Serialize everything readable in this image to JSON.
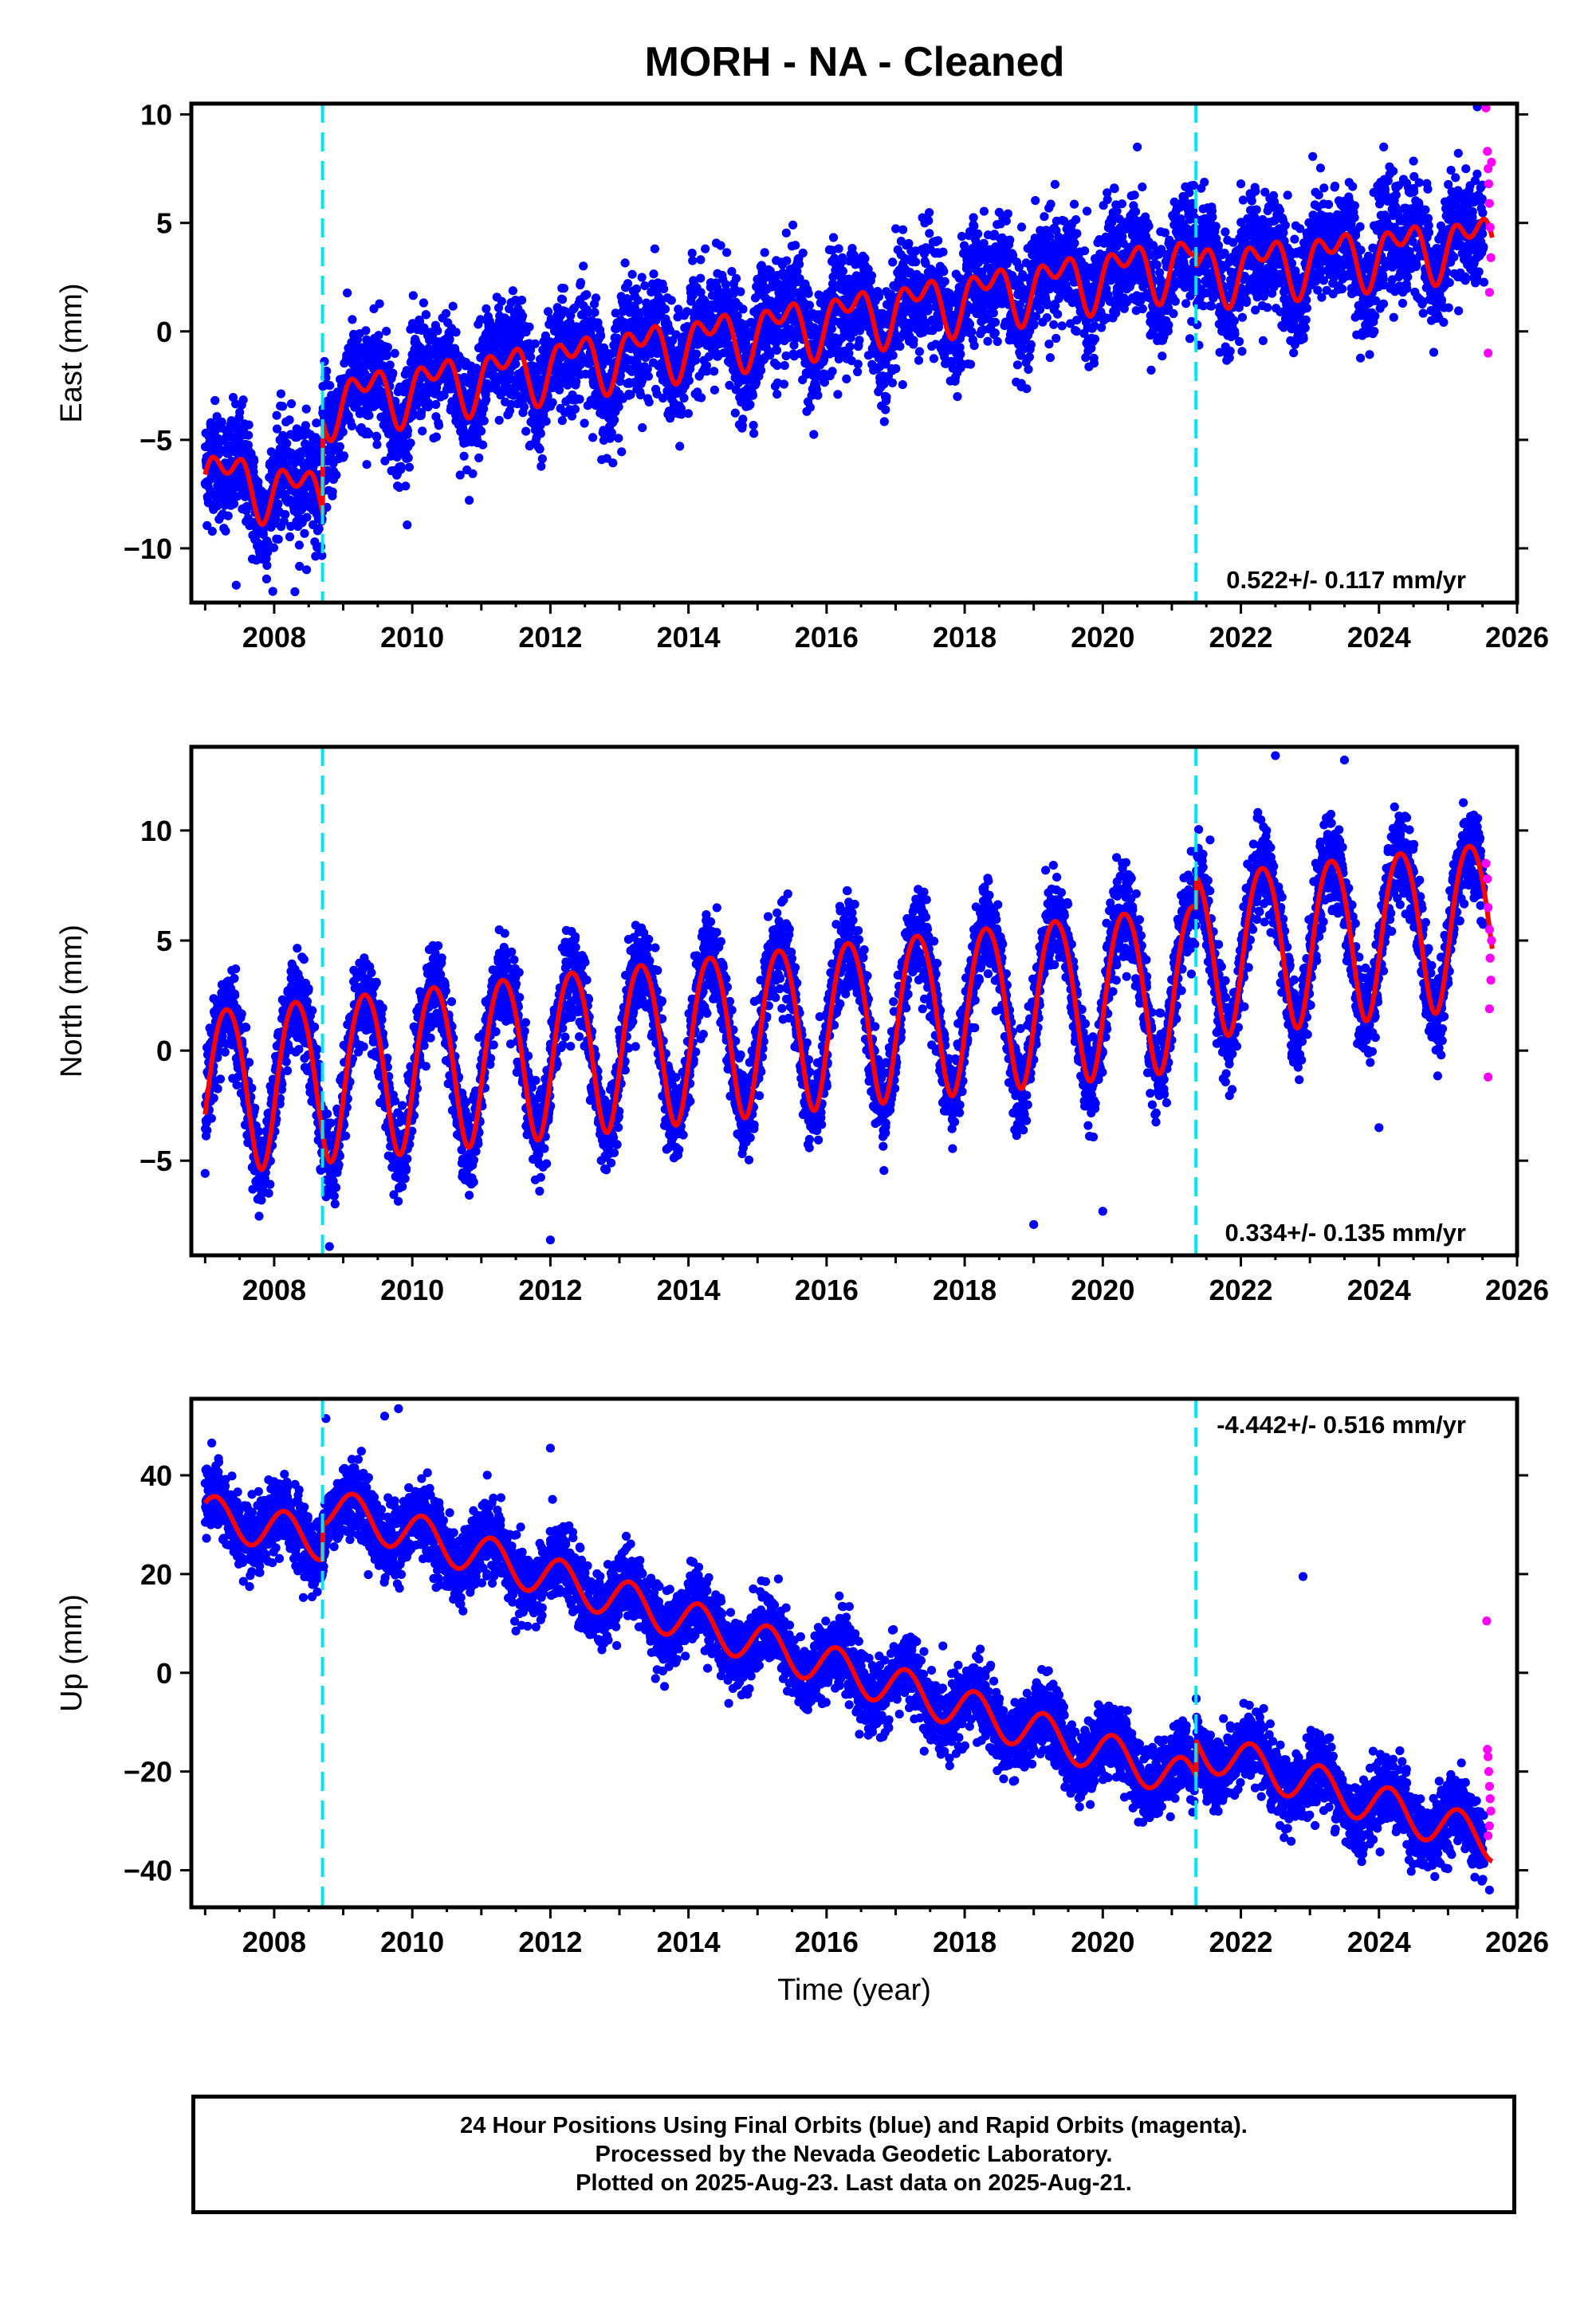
{
  "title": "MORH  - NA - Cleaned",
  "colors": {
    "final_orbits": "#0000ff",
    "rapid_orbits": "#ff00ff",
    "model_fit": "#ff0000",
    "offsets": "#00e5ee",
    "frame": "#000000"
  },
  "caption": {
    "line1": "24 Hour Positions Using Final Orbits (blue) and Rapid Orbits (magenta).",
    "line2": "Processed by the Nevada Geodetic Laboratory.",
    "line3": "Plotted on 2025-Aug-23. Last data on 2025-Aug-21."
  },
  "chart_data": [
    {
      "type": "scatter",
      "component": "east",
      "ylabel": "East (mm)",
      "xlabel": "",
      "xlim": [
        2006.8,
        2026.0
      ],
      "ylim": [
        -12.5,
        10.5
      ],
      "yticks": [
        -10,
        -5,
        0,
        5,
        10
      ],
      "ytick_labels": [
        "−10",
        "−5",
        "0",
        "5",
        "10"
      ],
      "xticks": [
        2008,
        2010,
        2012,
        2014,
        2016,
        2018,
        2020,
        2022,
        2024,
        2026
      ],
      "rate_label": "0.522+/- 0.117 mm/yr",
      "rate_label_position": "bottom-right",
      "offsets": [
        2008.7,
        2021.35
      ],
      "data_start": 2007.0,
      "data_end": 2025.64,
      "rapid_start": 2025.52,
      "fit": {
        "segments": [
          {
            "start": 2007.0,
            "end": 2008.7,
            "value_at_start": -6.6,
            "slope": -0.6
          },
          {
            "start": 2008.7,
            "end": 2021.35,
            "value_at_start": -3.3,
            "slope": 0.522
          },
          {
            "start": 2021.35,
            "end": 2025.64,
            "value_at_start": 2.7,
            "slope": 0.35
          }
        ],
        "annual_sin": 0.9,
        "annual_cos": -0.5,
        "semiannual_sin": 0.6,
        "semiannual_cos": 0.5
      },
      "scatter_sigma": 1.3,
      "outliers": [
        [
          2007.45,
          -11.7
        ],
        [
          2008.3,
          -12.0
        ],
        [
          2020.5,
          8.5
        ],
        [
          2021.3,
          5.9
        ],
        [
          2022.0,
          6.8
        ]
      ],
      "rapid_points": [
        [
          2025.55,
          10.3
        ],
        [
          2025.57,
          8.3
        ],
        [
          2025.58,
          7.5
        ],
        [
          2025.59,
          6.8
        ],
        [
          2025.6,
          5.9
        ],
        [
          2025.61,
          4.8
        ],
        [
          2025.62,
          3.4
        ],
        [
          2025.6,
          1.8
        ],
        [
          2025.58,
          -1.0
        ],
        [
          2025.63,
          7.8
        ]
      ]
    },
    {
      "type": "scatter",
      "component": "north",
      "ylabel": "North (mm)",
      "xlabel": "",
      "xlim": [
        2006.8,
        2026.0
      ],
      "ylim": [
        -9.3,
        13.8
      ],
      "yticks": [
        -5,
        0,
        5,
        10
      ],
      "ytick_labels": [
        "−5",
        "0",
        "5",
        "10"
      ],
      "xticks": [
        2008,
        2010,
        2012,
        2014,
        2016,
        2018,
        2020,
        2022,
        2024,
        2026
      ],
      "rate_label": "0.334+/- 0.135 mm/yr",
      "rate_label_position": "bottom-right",
      "offsets": [
        2008.7,
        2021.35
      ],
      "data_start": 2007.0,
      "data_end": 2025.64,
      "rapid_start": 2025.52,
      "fit": {
        "segments": [
          {
            "start": 2007.0,
            "end": 2021.35,
            "value_at_start": -1.6,
            "slope": 0.334
          },
          {
            "start": 2021.35,
            "end": 2025.64,
            "value_at_start": 4.6,
            "slope": 0.334
          }
        ],
        "annual_sin": 3.4,
        "annual_cos": -1.5,
        "semiannual_sin": 0.3,
        "semiannual_cos": 0.2
      },
      "scatter_sigma": 1.0,
      "outliers": [
        [
          2008.8,
          -8.9
        ],
        [
          2012.0,
          -8.6
        ],
        [
          2019.0,
          -7.9
        ],
        [
          2020.0,
          -7.3
        ],
        [
          2022.5,
          13.4
        ],
        [
          2023.5,
          13.2
        ],
        [
          2024.0,
          -3.5
        ],
        [
          2024.9,
          -0.2
        ]
      ],
      "rapid_points": [
        [
          2025.55,
          8.5
        ],
        [
          2025.57,
          7.8
        ],
        [
          2025.58,
          6.5
        ],
        [
          2025.6,
          5.5
        ],
        [
          2025.61,
          4.2
        ],
        [
          2025.62,
          3.2
        ],
        [
          2025.6,
          1.9
        ],
        [
          2025.58,
          -1.2
        ],
        [
          2025.63,
          5.0
        ]
      ]
    },
    {
      "type": "scatter",
      "component": "up",
      "ylabel": "Up (mm)",
      "xlabel": "Time (year)",
      "xlim": [
        2006.8,
        2026.0
      ],
      "ylim": [
        -47.5,
        55.5
      ],
      "yticks": [
        -40,
        -20,
        0,
        20,
        40
      ],
      "ytick_labels": [
        "−40",
        "−20",
        "0",
        "20",
        "40"
      ],
      "xticks": [
        2008,
        2010,
        2012,
        2014,
        2016,
        2018,
        2020,
        2022,
        2024,
        2026
      ],
      "rate_label": "-4.442+/- 0.516 mm/yr",
      "rate_label_position": "top-right",
      "offsets": [
        2008.7,
        2021.35
      ],
      "data_start": 2007.0,
      "data_end": 2025.64,
      "rapid_start": 2025.52,
      "fit": {
        "segments": [
          {
            "start": 2007.0,
            "end": 2008.7,
            "value_at_start": 32.0,
            "slope": -3.0
          },
          {
            "start": 2008.7,
            "end": 2021.35,
            "value_at_start": 34.0,
            "slope": -4.442
          },
          {
            "start": 2021.35,
            "end": 2025.64,
            "value_at_start": -15.0,
            "slope": -4.442
          }
        ],
        "annual_sin": 3.4,
        "annual_cos": 2.4,
        "semiannual_sin": 0.0,
        "semiannual_cos": 0.0
      },
      "scatter_sigma": 3.6,
      "outliers": [
        [
          2008.75,
          51.5
        ],
        [
          2009.6,
          52.0
        ],
        [
          2009.8,
          53.5
        ],
        [
          2012.0,
          45.5
        ],
        [
          2022.9,
          19.5
        ],
        [
          2025.6,
          -44.0
        ]
      ],
      "rapid_points": [
        [
          2025.56,
          10.5
        ],
        [
          2025.57,
          -15.5
        ],
        [
          2025.58,
          -17.0
        ],
        [
          2025.59,
          -20.0
        ],
        [
          2025.6,
          -23.0
        ],
        [
          2025.61,
          -25.5
        ],
        [
          2025.62,
          -28.0
        ],
        [
          2025.6,
          -31.0
        ],
        [
          2025.58,
          -33.0
        ]
      ]
    }
  ]
}
